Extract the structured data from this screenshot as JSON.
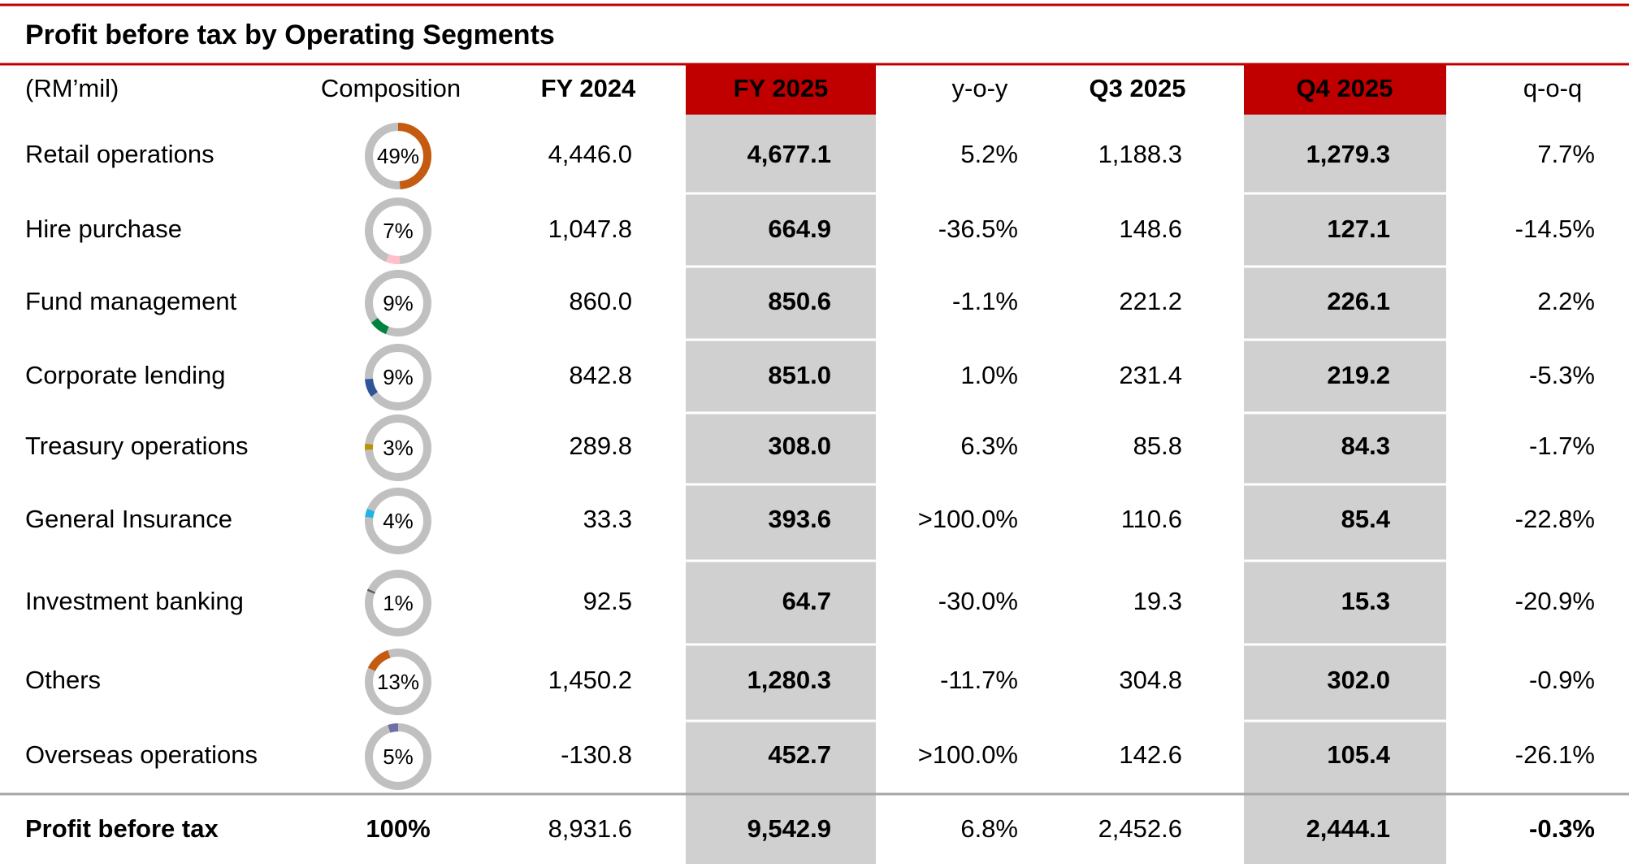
{
  "title": "Profit before tax by Operating Segments",
  "header": [
    "(RM’mil)",
    "Composition",
    "FY 2024",
    "FY 2025",
    "y-o-y",
    "Q3 2025",
    "Q4 2025",
    "q-o-q"
  ],
  "rows": [
    {
      "segment": "Retail operations",
      "composition": {
        "value": 49,
        "label": "49%"
      },
      "color": "#c55a11",
      "values": [
        "4,446.0",
        "4,677.1",
        "5.2%",
        "1,188.3",
        "1,279.3",
        "7.7%"
      ]
    },
    {
      "segment": "Hire purchase",
      "composition": {
        "value": 7,
        "label": "7%"
      },
      "color": "#ffc0cb",
      "values": [
        "1,047.8",
        "664.9",
        "-36.5%",
        "148.6",
        "127.1",
        "-14.5%"
      ]
    },
    {
      "segment": "Fund management",
      "composition": {
        "value": 9,
        "label": "9%"
      },
      "color": "#00843d",
      "values": [
        "860.0",
        "850.6",
        "-1.1%",
        "221.2",
        "226.1",
        "2.2%"
      ]
    },
    {
      "segment": "Corporate lending",
      "composition": {
        "value": 9,
        "label": "9%"
      },
      "color": "#2f5597",
      "values": [
        "842.8",
        "851.0",
        "1.0%",
        "231.4",
        "219.2",
        "-5.3%"
      ]
    },
    {
      "segment": "Treasury operations",
      "composition": {
        "value": 3,
        "label": "3%"
      },
      "color": "#bf9000",
      "values": [
        "289.8",
        "308.0",
        "6.3%",
        "85.8",
        "84.3",
        "-1.7%"
      ]
    },
    {
      "segment": "General Insurance",
      "composition": {
        "value": 4,
        "label": "4%"
      },
      "color": "#1fb5e8",
      "values": [
        "33.3",
        "393.6",
        ">100.0%",
        "110.6",
        "85.4",
        "-22.8%"
      ]
    },
    {
      "segment": "Investment banking",
      "composition": {
        "value": 1,
        "label": "1%"
      },
      "color": "#595959",
      "values": [
        "92.5",
        "64.7",
        "-30.0%",
        "19.3",
        "15.3",
        "-20.9%"
      ]
    },
    {
      "segment": "Others",
      "composition": {
        "value": 13,
        "label": "13%"
      },
      "color": "#c55a11",
      "values": [
        "1,450.2",
        "1,280.3",
        "-11.7%",
        "304.8",
        "302.0",
        "-0.9%"
      ]
    },
    {
      "segment": "Overseas operations",
      "composition": {
        "value": 5,
        "label": "5%"
      },
      "color": "#6f6fa8",
      "values": [
        "-130.8",
        "452.7",
        ">100.0%",
        "142.6",
        "105.4",
        "-26.1%"
      ]
    }
  ],
  "total": {
    "segment": "Profit before tax",
    "composition": "100%",
    "values": [
      "8,931.6",
      "9,542.9",
      "6.8%",
      "2,452.6",
      "2,444.1",
      "-0.3%"
    ]
  }
}
